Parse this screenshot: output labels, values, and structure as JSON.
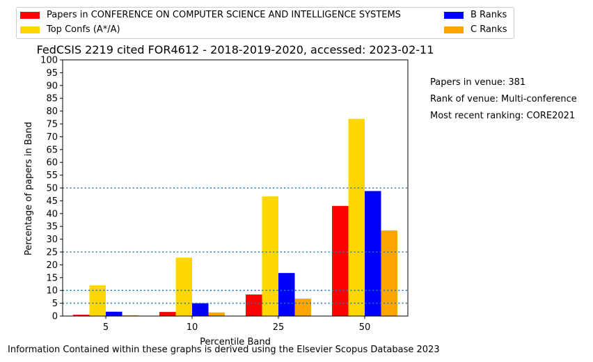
{
  "chart_data": {
    "type": "bar",
    "title": "FedCSIS 2219 cited FOR4612 - 2018-2019-2020, accessed: 2023-02-11",
    "xlabel": "Percentile Band",
    "ylabel": "Percentage of papers in Band",
    "categories": [
      "5",
      "10",
      "25",
      "50"
    ],
    "ylim": [
      0,
      100
    ],
    "yticks": [
      "0",
      "5",
      "10",
      "15",
      "20",
      "25",
      "30",
      "35",
      "40",
      "45",
      "50",
      "55",
      "60",
      "65",
      "70",
      "75",
      "80",
      "85",
      "90",
      "95",
      "100"
    ],
    "reference_lines": [
      5,
      10,
      25,
      50
    ],
    "series": [
      {
        "name": "Papers in CONFERENCE ON COMPUTER SCIENCE AND INTELLIGENCE SYSTEMS",
        "color": "#ff0000",
        "values": [
          0.5,
          1.6,
          8.4,
          43.0
        ]
      },
      {
        "name": "Top Confs (A*/A)",
        "color": "#ffd700",
        "values": [
          12.0,
          22.8,
          46.7,
          77.0
        ]
      },
      {
        "name": "B Ranks",
        "color": "#0000ff",
        "values": [
          1.7,
          5.0,
          16.8,
          48.8
        ]
      },
      {
        "name": "C Ranks",
        "color": "#ffa500",
        "values": [
          0.3,
          1.4,
          6.8,
          33.4
        ]
      }
    ],
    "legend_placement": "top, two columns, outside plot"
  },
  "side_notes": {
    "papers": "Papers in venue: 381",
    "rank": "Rank of venue: Multi-conference",
    "ranking": "Most recent ranking: CORE2021"
  },
  "footer": "Information Contained within these graphs is derived using the Elsevier Scopus Database 2023"
}
